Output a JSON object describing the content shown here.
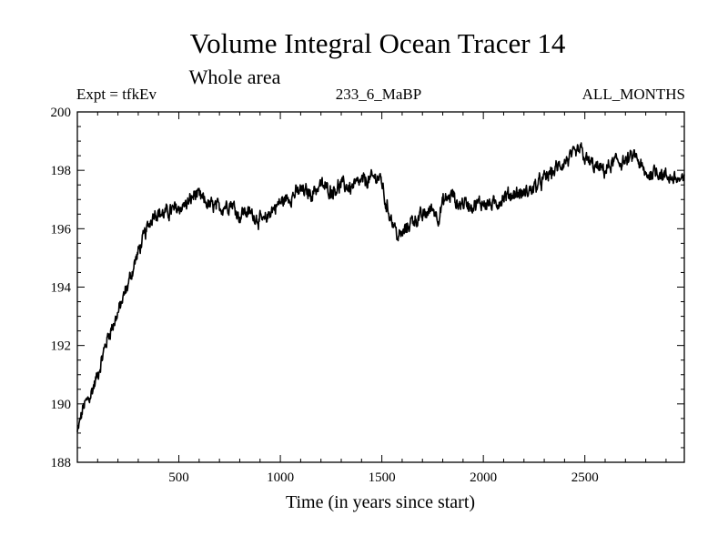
{
  "chart_data": {
    "type": "line",
    "title": "Volume Integral Ocean Tracer 14",
    "subtitle": "Whole area",
    "annotations": {
      "left": "Expt = tfkEv",
      "center": "233_6_MaBP",
      "right": "ALL_MONTHS"
    },
    "xlabel": "Time (in years since start)",
    "ylabel": "",
    "xlim": [
      0,
      2990
    ],
    "ylim": [
      188,
      200
    ],
    "xticks": [
      500,
      1000,
      1500,
      2000,
      2500
    ],
    "yticks": [
      188,
      190,
      192,
      194,
      196,
      198,
      200
    ],
    "grid": false,
    "series": [
      {
        "color": "#000000",
        "x": [
          0,
          30,
          60,
          100,
          150,
          200,
          250,
          300,
          350,
          380,
          420,
          500,
          550,
          580,
          650,
          700,
          760,
          800,
          820,
          860,
          900,
          920,
          950,
          1000,
          1050,
          1100,
          1150,
          1200,
          1250,
          1300,
          1350,
          1400,
          1450,
          1480,
          1500,
          1520,
          1540,
          1560,
          1580,
          1600,
          1650,
          1700,
          1750,
          1780,
          1800,
          1850,
          1870,
          1900,
          1950,
          2000,
          2050,
          2100,
          2150,
          2200,
          2250,
          2300,
          2350,
          2400,
          2450,
          2480,
          2500,
          2550,
          2600,
          2650,
          2700,
          2750,
          2800,
          2850,
          2900,
          2950,
          2990
        ],
        "y": [
          189.0,
          189.9,
          190.2,
          191.0,
          192.3,
          193.1,
          194.1,
          195.2,
          196.1,
          196.6,
          196.5,
          196.7,
          196.9,
          197.2,
          196.8,
          196.7,
          196.9,
          196.4,
          196.6,
          196.5,
          196.3,
          196.2,
          196.6,
          196.9,
          197.1,
          197.3,
          197.2,
          197.5,
          197.3,
          197.5,
          197.4,
          197.6,
          197.7,
          197.8,
          197.6,
          196.8,
          196.5,
          196.1,
          195.7,
          195.8,
          196.3,
          196.4,
          196.7,
          196.4,
          196.9,
          197.2,
          196.8,
          196.9,
          196.8,
          196.9,
          196.8,
          197.1,
          197.2,
          197.2,
          197.4,
          197.7,
          198.0,
          198.3,
          198.5,
          198.7,
          198.4,
          198.1,
          198.0,
          198.3,
          198.3,
          198.5,
          197.8,
          198.0,
          197.8,
          197.7,
          197.6
        ]
      }
    ]
  }
}
